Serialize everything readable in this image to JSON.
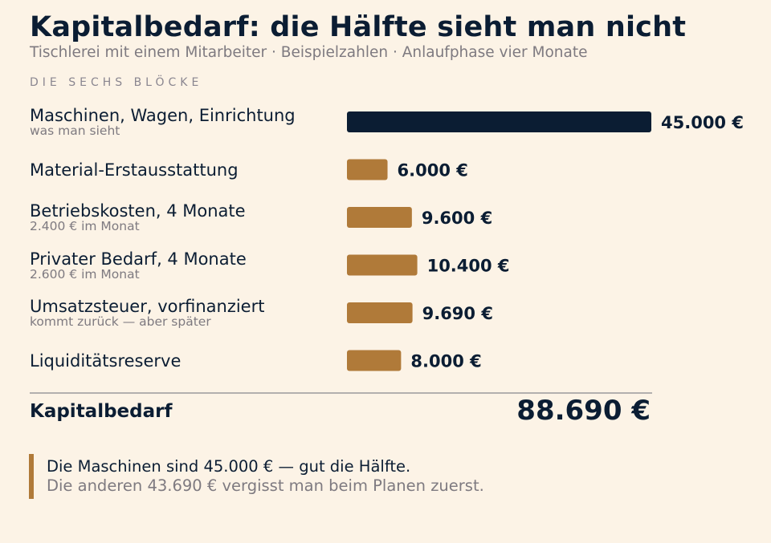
{
  "header": {
    "title": "Kapitalbedarf: die Hälfte sieht man nicht",
    "subtitle": "Tischlerei mit einem Mitarbeiter · Beispielzahlen · Anlaufphase vier Monate",
    "section_label": "DIE SECHS BLÖCKE"
  },
  "colors": {
    "primary": "#0b1d33",
    "accent": "#b07a39",
    "muted": "#7e7a80",
    "background": "#fcf3e6"
  },
  "chart_data": {
    "type": "bar",
    "orientation": "horizontal",
    "categories": [
      "Maschinen, Wagen, Einrichtung",
      "Material-Erstausstattung",
      "Betriebskosten, 4 Monate",
      "Privater Bedarf, 4 Monate",
      "Umsatzsteuer, vorfinanziert",
      "Liquiditätsreserve"
    ],
    "notes": [
      "was man sieht",
      "",
      "2.400 € im Monat",
      "2.600 € im Monat",
      "kommt zurück — aber später",
      ""
    ],
    "values": [
      45000,
      6000,
      9600,
      10400,
      9690,
      8000
    ],
    "value_labels": [
      "45.000 €",
      "6.000 €",
      "9.600 €",
      "10.400 €",
      "9.690 €",
      "8.000 €"
    ],
    "bar_colors": [
      "#0b1d33",
      "#b07a39",
      "#b07a39",
      "#b07a39",
      "#b07a39",
      "#b07a39"
    ],
    "xlim": [
      0,
      45000
    ],
    "grid": false,
    "legend": "none"
  },
  "total": {
    "label": "Kapitalbedarf",
    "value": "88.690 €"
  },
  "callout": {
    "line1": "Die Maschinen sind 45.000 € — gut die Hälfte.",
    "line2": "Die anderen 43.690 € vergisst man beim Planen zuerst."
  }
}
